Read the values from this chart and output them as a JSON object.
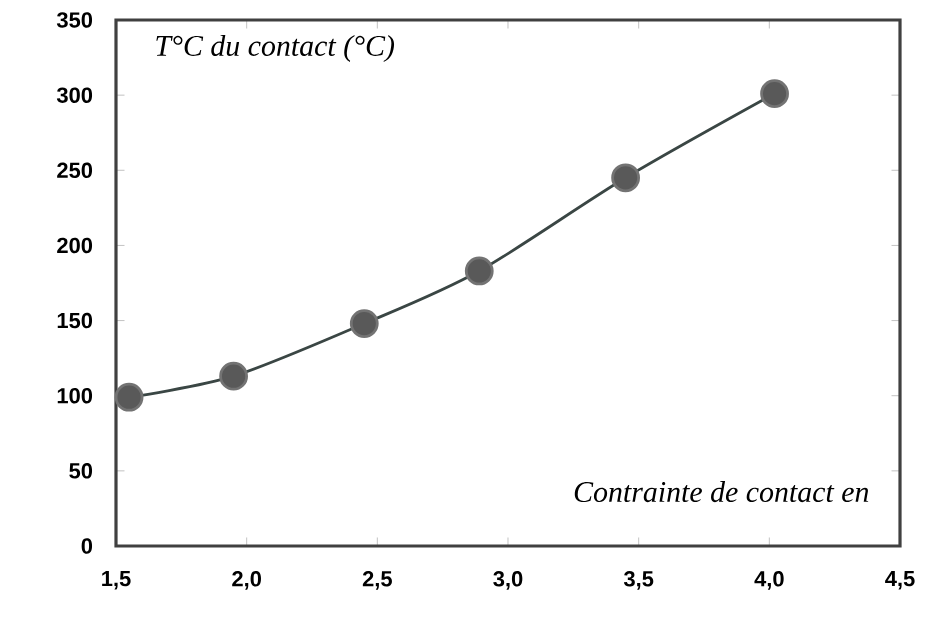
{
  "chart_data": {
    "type": "line",
    "xlabel": "Contrainte de contact en",
    "ylabel": "T°C du contact (°C)",
    "x": [
      1.55,
      1.95,
      2.45,
      2.89,
      3.45,
      4.02
    ],
    "series": [
      {
        "color": "#3a4644",
        "values": [
          99,
          113,
          148,
          183,
          245,
          301
        ]
      }
    ],
    "xlim": [
      1.5,
      4.5
    ],
    "ylim": [
      0,
      350
    ],
    "xticks": [
      {
        "value": 1.5,
        "label": "1,5"
      },
      {
        "value": 2.0,
        "label": "2,0"
      },
      {
        "value": 2.5,
        "label": "2,5"
      },
      {
        "value": 3.0,
        "label": "3,0"
      },
      {
        "value": 3.5,
        "label": "3,5"
      },
      {
        "value": 4.0,
        "label": "4,0"
      },
      {
        "value": 4.5,
        "label": "4,5"
      }
    ],
    "yticks": [
      0,
      50,
      100,
      150,
      200,
      250,
      300,
      350
    ],
    "marker": "circle",
    "line_style": "solid"
  }
}
